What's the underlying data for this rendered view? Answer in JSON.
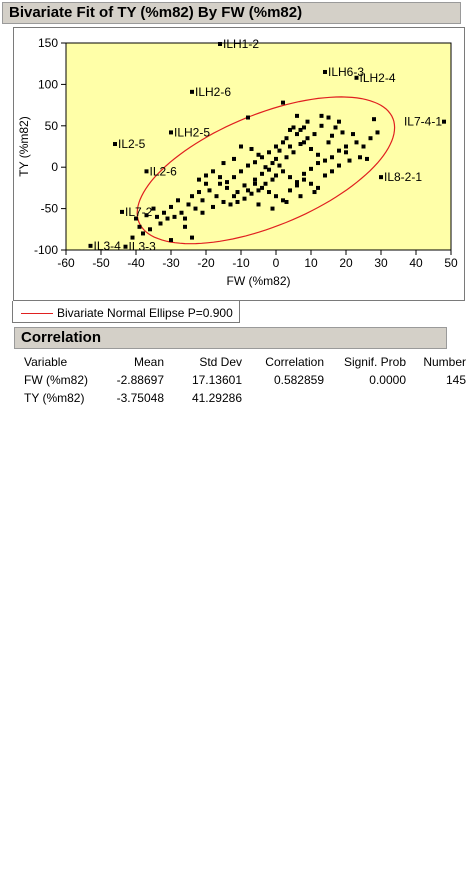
{
  "window": {
    "title": "Bivariate Fit of TY (%m82) By FW (%m82)"
  },
  "legend": {
    "label": "Bivariate Normal Ellipse P=0.900",
    "color": "#e02020"
  },
  "correlation": {
    "title": "Correlation",
    "columns": [
      "Variable",
      "Mean",
      "Std Dev",
      "Correlation",
      "Signif. Prob",
      "Number"
    ],
    "rows": [
      [
        "FW (%m82)",
        "-2.88697",
        "17.13601",
        "0.582859",
        "0.0000",
        "145"
      ],
      [
        "TY (%m82)",
        "-3.75048",
        "41.29286",
        "",
        "",
        ""
      ]
    ]
  },
  "colors": {
    "plot_background": "#ffffa8",
    "ellipse": "#e02020",
    "header_background": "#d4d0c8"
  },
  "chart_data": {
    "type": "scatter",
    "title": "",
    "xlabel": "FW (%m82)",
    "ylabel": "TY (%m82)",
    "xlim": [
      -60,
      50
    ],
    "ylim": [
      -100,
      150
    ],
    "xticks": [
      -60,
      -50,
      -40,
      -30,
      -20,
      -10,
      0,
      10,
      20,
      30,
      40,
      50
    ],
    "yticks": [
      -100,
      -50,
      0,
      50,
      100,
      150
    ],
    "grid": false,
    "ellipse": {
      "label": "Bivariate Normal Ellipse P=0.900",
      "mean_x": -2.88697,
      "mean_y": -3.75048,
      "sd_x": 17.13601,
      "sd_y": 41.29286,
      "r": 0.582859,
      "p": 0.9
    },
    "labeled_points": [
      {
        "label": "ILH1-2",
        "x": -16,
        "y": 155
      },
      {
        "label": "ILH6-3",
        "x": 14,
        "y": 115
      },
      {
        "label": "ILH2-4",
        "x": 23,
        "y": 108
      },
      {
        "label": "ILH2-6",
        "x": -24,
        "y": 91
      },
      {
        "label": "IL7-4-1",
        "x": 48,
        "y": 55
      },
      {
        "label": "ILH2-5",
        "x": -30,
        "y": 42
      },
      {
        "label": "IL2-5",
        "x": -46,
        "y": 28
      },
      {
        "label": "IL2-6",
        "x": -37,
        "y": -5
      },
      {
        "label": "IL8-2-1",
        "x": 30,
        "y": -12
      },
      {
        "label": "IL7-2",
        "x": -44,
        "y": -54
      },
      {
        "label": "IL3-4",
        "x": -53,
        "y": -95
      },
      {
        "label": "IL3-3",
        "x": -43,
        "y": -96
      }
    ],
    "points": [
      [
        -8,
        60
      ],
      [
        2,
        78
      ],
      [
        6,
        62
      ],
      [
        9,
        55
      ],
      [
        5,
        48
      ],
      [
        7,
        45
      ],
      [
        13,
        50
      ],
      [
        18,
        55
      ],
      [
        22,
        40
      ],
      [
        16,
        38
      ],
      [
        28,
        58
      ],
      [
        29,
        42
      ],
      [
        25,
        25
      ],
      [
        20,
        18
      ],
      [
        26,
        10
      ],
      [
        15,
        30
      ],
      [
        12,
        15
      ],
      [
        10,
        22
      ],
      [
        8,
        30
      ],
      [
        4,
        25
      ],
      [
        3,
        35
      ],
      [
        1,
        20
      ],
      [
        0,
        10
      ],
      [
        -1,
        5
      ],
      [
        -3,
        0
      ],
      [
        -5,
        15
      ],
      [
        -7,
        22
      ],
      [
        -10,
        25
      ],
      [
        -12,
        10
      ],
      [
        -15,
        5
      ],
      [
        -18,
        -5
      ],
      [
        -20,
        -10
      ],
      [
        -22,
        -15
      ],
      [
        -16,
        -20
      ],
      [
        -14,
        -25
      ],
      [
        -11,
        -30
      ],
      [
        -9,
        -22
      ],
      [
        -6,
        -15
      ],
      [
        -4,
        -8
      ],
      [
        -2,
        -3
      ],
      [
        0,
        -10
      ],
      [
        2,
        -5
      ],
      [
        4,
        -12
      ],
      [
        6,
        -18
      ],
      [
        8,
        -8
      ],
      [
        10,
        -2
      ],
      [
        12,
        5
      ],
      [
        14,
        8
      ],
      [
        16,
        12
      ],
      [
        18,
        20
      ],
      [
        20,
        25
      ],
      [
        23,
        30
      ],
      [
        19,
        42
      ],
      [
        17,
        48
      ],
      [
        11,
        40
      ],
      [
        9,
        35
      ],
      [
        7,
        28
      ],
      [
        5,
        18
      ],
      [
        3,
        12
      ],
      [
        1,
        2
      ],
      [
        -1,
        -15
      ],
      [
        -3,
        -20
      ],
      [
        -5,
        -28
      ],
      [
        -7,
        -32
      ],
      [
        -9,
        -38
      ],
      [
        -11,
        -42
      ],
      [
        -13,
        -45
      ],
      [
        -17,
        -35
      ],
      [
        -19,
        -28
      ],
      [
        -21,
        -40
      ],
      [
        -23,
        -50
      ],
      [
        -25,
        -45
      ],
      [
        -27,
        -55
      ],
      [
        -29,
        -60
      ],
      [
        -31,
        -62
      ],
      [
        -33,
        -68
      ],
      [
        -35,
        -50
      ],
      [
        -37,
        -58
      ],
      [
        -39,
        -72
      ],
      [
        -40,
        -62
      ],
      [
        -26,
        -72
      ],
      [
        -24,
        -85
      ],
      [
        -21,
        -55
      ],
      [
        -18,
        -48
      ],
      [
        -15,
        -42
      ],
      [
        -12,
        -35
      ],
      [
        -8,
        -28
      ],
      [
        -6,
        -20
      ],
      [
        -4,
        -25
      ],
      [
        -2,
        -30
      ],
      [
        0,
        -35
      ],
      [
        2,
        -40
      ],
      [
        4,
        -28
      ],
      [
        6,
        -22
      ],
      [
        8,
        -15
      ],
      [
        10,
        -20
      ],
      [
        12,
        -25
      ],
      [
        14,
        -10
      ],
      [
        16,
        -5
      ],
      [
        18,
        2
      ],
      [
        21,
        8
      ],
      [
        24,
        12
      ],
      [
        27,
        35
      ],
      [
        15,
        60
      ],
      [
        13,
        62
      ],
      [
        8,
        48
      ],
      [
        6,
        40
      ],
      [
        4,
        45
      ],
      [
        2,
        30
      ],
      [
        0,
        25
      ],
      [
        -2,
        18
      ],
      [
        -4,
        12
      ],
      [
        -6,
        6
      ],
      [
        -8,
        2
      ],
      [
        -10,
        -5
      ],
      [
        -12,
        -12
      ],
      [
        -14,
        -18
      ],
      [
        -16,
        -12
      ],
      [
        -20,
        -20
      ],
      [
        -22,
        -30
      ],
      [
        -24,
        -35
      ],
      [
        -28,
        -40
      ],
      [
        -30,
        -48
      ],
      [
        -32,
        -55
      ],
      [
        -34,
        -60
      ],
      [
        -26,
        -62
      ],
      [
        -36,
        -75
      ],
      [
        -38,
        -80
      ],
      [
        -41,
        -85
      ],
      [
        -30,
        -88
      ],
      [
        -5,
        -45
      ],
      [
        -1,
        -50
      ],
      [
        3,
        -42
      ],
      [
        7,
        -35
      ],
      [
        11,
        -30
      ]
    ]
  }
}
